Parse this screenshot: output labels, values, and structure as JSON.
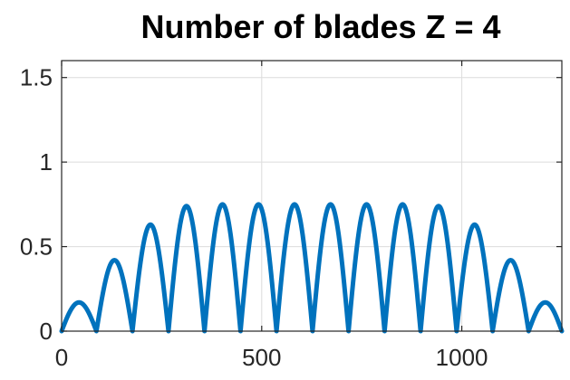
{
  "chart_data": {
    "type": "line",
    "title": "Number of blades Z = 4",
    "xlabel": "",
    "ylabel": "",
    "xlim": [
      0,
      1250
    ],
    "ylim": [
      0,
      1.6
    ],
    "xticks": [
      0,
      500,
      1000
    ],
    "xtick_labels": [
      "0",
      "500",
      "1000"
    ],
    "yticks": [
      0,
      0.5,
      1,
      1.5
    ],
    "ytick_labels": [
      "0",
      "0.5",
      "1",
      "1.5"
    ],
    "grid": true,
    "legend": null,
    "series": [
      {
        "name": "blades Z=4",
        "color": "#0072BD",
        "arches": [
          {
            "start": 0,
            "end": 87,
            "peak": 0.17
          },
          {
            "start": 87,
            "end": 177,
            "peak": 0.42
          },
          {
            "start": 177,
            "end": 267,
            "peak": 0.63
          },
          {
            "start": 267,
            "end": 357,
            "peak": 0.74
          },
          {
            "start": 357,
            "end": 447,
            "peak": 0.75
          },
          {
            "start": 447,
            "end": 537,
            "peak": 0.75
          },
          {
            "start": 537,
            "end": 627,
            "peak": 0.75
          },
          {
            "start": 627,
            "end": 717,
            "peak": 0.75
          },
          {
            "start": 717,
            "end": 807,
            "peak": 0.75
          },
          {
            "start": 807,
            "end": 897,
            "peak": 0.75
          },
          {
            "start": 897,
            "end": 987,
            "peak": 0.74
          },
          {
            "start": 987,
            "end": 1077,
            "peak": 0.63
          },
          {
            "start": 1077,
            "end": 1167,
            "peak": 0.42
          },
          {
            "start": 1167,
            "end": 1250,
            "peak": 0.17
          }
        ]
      }
    ]
  }
}
